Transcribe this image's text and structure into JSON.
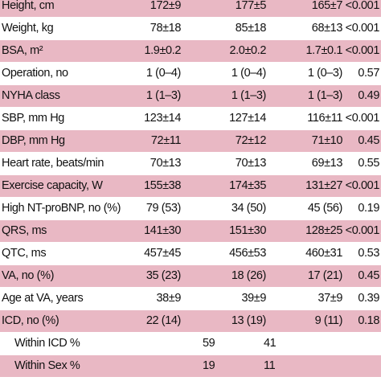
{
  "table": {
    "rows": [
      [
        "Height, cm",
        "172±9",
        "177±5",
        "165±7",
        "<0.001"
      ],
      [
        "Weight, kg",
        "78±18",
        "85±18",
        "68±13",
        "<0.001"
      ],
      [
        "BSA, m²",
        "1.9±0.2",
        "2.0±0.2",
        "1.7±0.1",
        "<0.001"
      ],
      [
        "Operation, no",
        "1 (0–4)",
        "1 (0–4)",
        "1 (0–3)",
        "0.57"
      ],
      [
        "NYHA class",
        "1 (1–3)",
        "1 (1–3)",
        "1 (1–3)",
        "0.49"
      ],
      [
        "SBP, mm Hg",
        "123±14",
        "127±14",
        "116±11",
        "<0.001"
      ],
      [
        "DBP, mm Hg",
        "72±11",
        "72±12",
        "71±10",
        "0.45"
      ],
      [
        "Heart rate, beats/min",
        "70±13",
        "70±13",
        "69±13",
        "0.55"
      ],
      [
        "Exercise capacity, W",
        "155±38",
        "174±35",
        "131±27",
        "<0.001"
      ],
      [
        "High NT-proBNP, no (%)",
        "79 (53)",
        "34 (50)",
        "45 (56)",
        "0.19"
      ],
      [
        "QRS, ms",
        "141±30",
        "151±30",
        "128±25",
        "<0.001"
      ],
      [
        "QTC, ms",
        "457±45",
        "456±53",
        "460±31",
        "0.53"
      ],
      [
        "VA, no (%)",
        "35 (23)",
        "18 (26)",
        "17 (21)",
        "0.45"
      ],
      [
        "Age at VA, years",
        "38±9",
        "39±9",
        "37±9",
        "0.39"
      ],
      [
        "ICD, no (%)",
        "22 (14)",
        "13 (19)",
        "9 (11)",
        "0.18"
      ],
      [
        "Within ICD %",
        null,
        "59",
        "41",
        null
      ],
      [
        "Within Sex %",
        null,
        "19",
        "11",
        null
      ]
    ]
  }
}
